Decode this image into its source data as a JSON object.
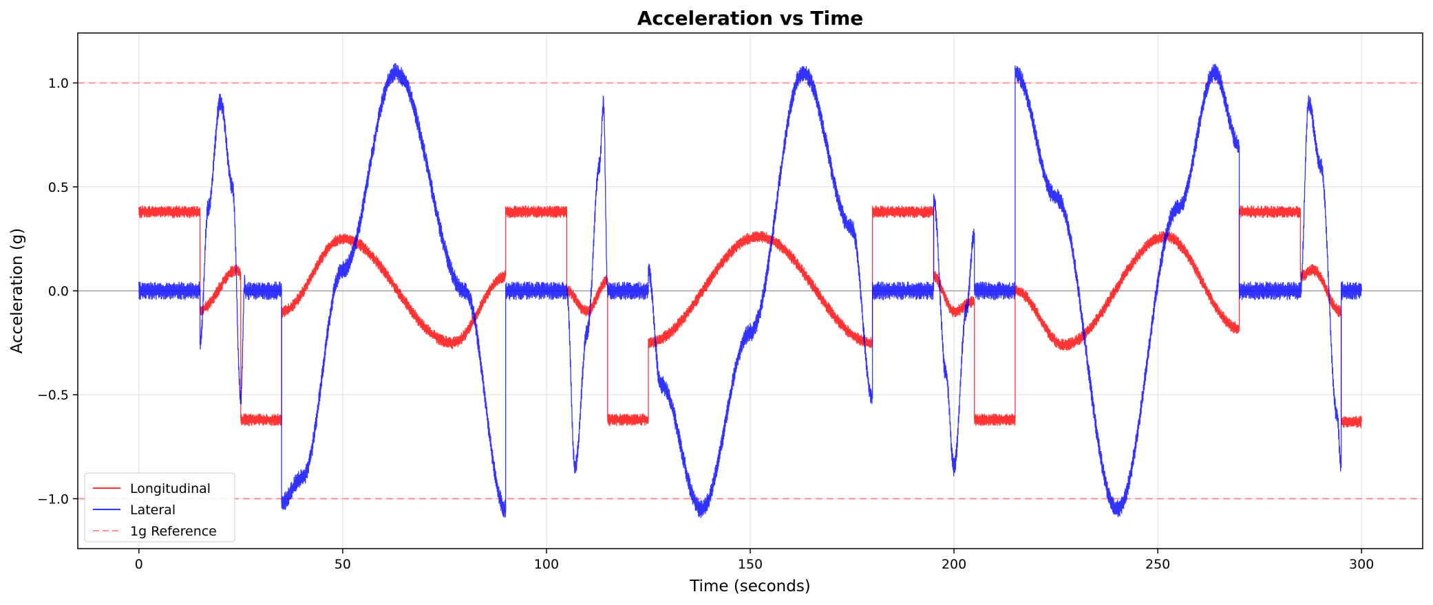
{
  "chart_data": {
    "type": "line",
    "title": "Acceleration vs Time",
    "xlabel": "Time (seconds)",
    "ylabel": "Acceleration (g)",
    "xlim": [
      -15,
      315
    ],
    "ylim": [
      -1.24,
      1.24
    ],
    "xticks": [
      0,
      50,
      100,
      150,
      200,
      250,
      300
    ],
    "xtick_labels": [
      "0",
      "50",
      "100",
      "150",
      "200",
      "250",
      "300"
    ],
    "yticks": [
      -1.0,
      -0.5,
      0.0,
      0.5,
      1.0
    ],
    "ytick_labels": [
      "−1.0",
      "−0.5",
      "0.0",
      "0.5",
      "1.0"
    ],
    "grid": true,
    "legend_position": "lower-left",
    "series": [
      {
        "name": "Longitudinal",
        "color": "#ff0000",
        "style": "solid",
        "noise_amplitude": 0.03,
        "x": [
          0,
          15,
          15,
          24,
          25,
          25,
          35,
          35,
          50,
          77,
          90,
          90,
          105,
          105,
          110,
          115,
          115,
          125,
          125,
          152,
          180,
          180,
          195,
          195,
          200,
          205,
          205,
          215,
          215,
          227,
          252,
          270,
          270,
          285,
          285,
          288,
          295,
          295,
          300
        ],
        "y": [
          0.38,
          0.38,
          -0.09,
          0.1,
          0.08,
          -0.62,
          -0.62,
          -0.1,
          0.25,
          -0.25,
          0.07,
          0.38,
          0.38,
          0.0,
          -0.1,
          0.05,
          -0.62,
          -0.62,
          -0.25,
          0.26,
          -0.25,
          0.38,
          0.38,
          0.07,
          -0.1,
          -0.05,
          -0.62,
          -0.62,
          0.0,
          -0.26,
          0.26,
          -0.18,
          0.38,
          0.38,
          0.07,
          0.1,
          -0.1,
          -0.63,
          -0.63
        ]
      },
      {
        "name": "Lateral",
        "color": "#0000ff",
        "style": "solid",
        "noise_amplitude": 0.045,
        "x": [
          0,
          15,
          15,
          17,
          20,
          23,
          25,
          26,
          26,
          35,
          35,
          40,
          50,
          63,
          80,
          90,
          90,
          105,
          105,
          107,
          110,
          113,
          114,
          115,
          115,
          125,
          125,
          128,
          138,
          150,
          163,
          175,
          180,
          180,
          195,
          195,
          198,
          200,
          203,
          205,
          205,
          215,
          215,
          225,
          240,
          255,
          264,
          270,
          270,
          285,
          285,
          287,
          290,
          294,
          295,
          295,
          300
        ],
        "y": [
          0.0,
          0.0,
          -0.26,
          0.4,
          0.91,
          0.5,
          -0.52,
          0.05,
          0.0,
          0.0,
          -1.02,
          -0.9,
          0.1,
          1.05,
          0.0,
          -1.05,
          0.0,
          0.0,
          0.0,
          -0.85,
          -0.2,
          0.6,
          0.9,
          0.0,
          0.0,
          0.0,
          0.1,
          -0.45,
          -1.05,
          -0.2,
          1.05,
          0.3,
          -0.52,
          0.0,
          0.0,
          0.44,
          -0.4,
          -0.85,
          -0.1,
          0.28,
          0.0,
          0.0,
          1.05,
          0.45,
          -1.05,
          0.4,
          1.05,
          0.7,
          0.0,
          0.0,
          0.0,
          0.9,
          0.6,
          -0.6,
          -0.85,
          0.0,
          0.0
        ]
      },
      {
        "name": "1g Reference",
        "color": "#ff9090",
        "style": "dashed",
        "lines": [
          1.0,
          -1.0
        ]
      }
    ]
  }
}
